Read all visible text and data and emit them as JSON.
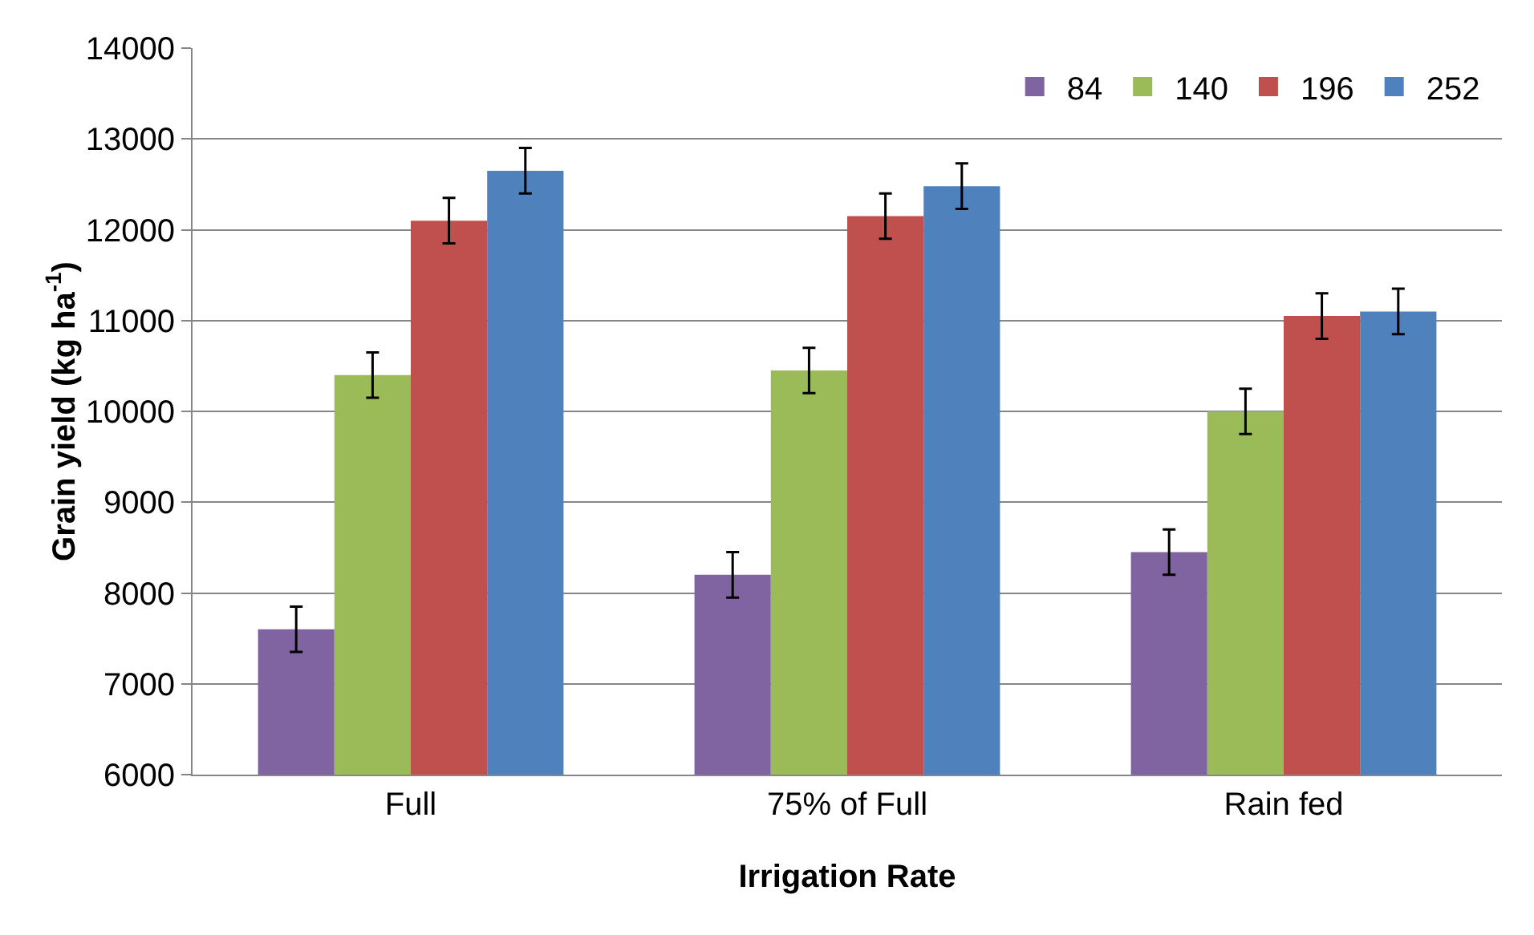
{
  "chart_data": {
    "type": "bar",
    "xlabel": "Irrigation Rate",
    "ylabel": "Grain yield (kg ha$^{-1}$)",
    "categories": [
      "Full",
      "75% of Full",
      "Rain fed"
    ],
    "series": [
      {
        "name": "84",
        "color": "#8064a2",
        "values": [
          7600,
          8200,
          8450
        ],
        "errors": [
          250,
          250,
          250
        ]
      },
      {
        "name": "140",
        "color": "#9bbb59",
        "values": [
          10400,
          10450,
          10000
        ],
        "errors": [
          250,
          250,
          250
        ]
      },
      {
        "name": "196",
        "color": "#c0504d",
        "values": [
          12100,
          12150,
          11050
        ],
        "errors": [
          250,
          250,
          250
        ]
      },
      {
        "name": "252",
        "color": "#4f81bd",
        "values": [
          12650,
          12480,
          11100
        ],
        "errors": [
          250,
          250,
          250
        ]
      }
    ],
    "ylim": [
      6000,
      14000
    ],
    "yticks": [
      6000,
      7000,
      8000,
      9000,
      10000,
      11000,
      12000,
      13000,
      14000
    ],
    "grid": "y",
    "legend": "top right"
  }
}
